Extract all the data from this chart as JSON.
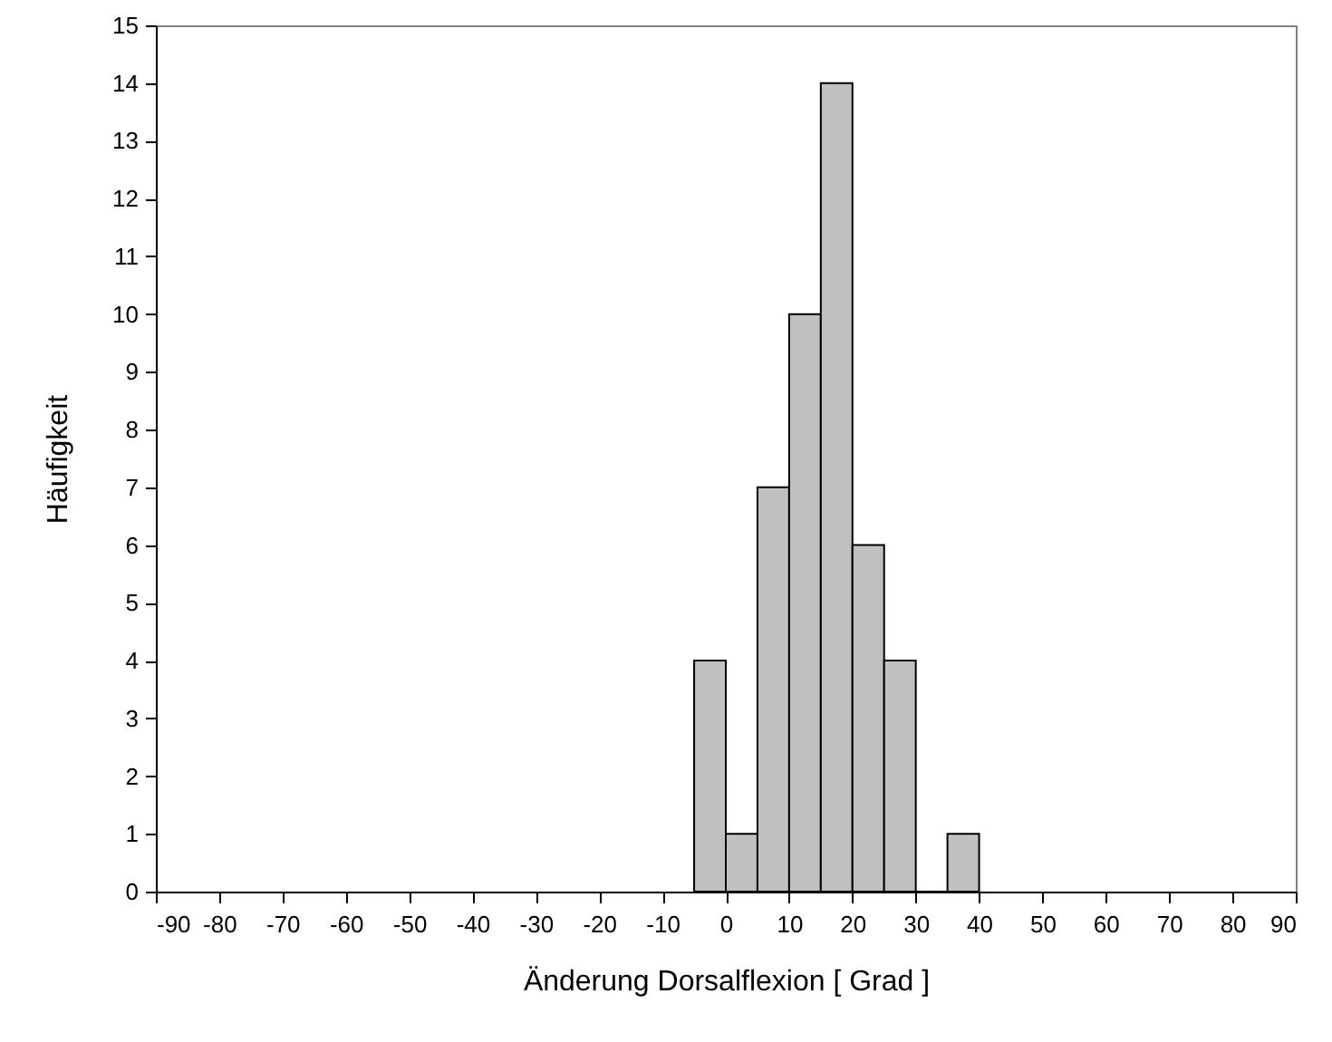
{
  "chart_data": {
    "type": "histogram",
    "xlabel": "Änderung Dorsalflexion [ Grad ]",
    "ylabel": "Häufigkeit",
    "bins": [
      -5,
      0,
      5,
      10,
      15,
      20,
      25,
      30,
      35,
      40
    ],
    "values": [
      4,
      1,
      7,
      10,
      14,
      6,
      4,
      0,
      1
    ],
    "color": "#c0c0c0",
    "xlim": [
      -90,
      90
    ],
    "xticks": [
      -90,
      -80,
      -70,
      -60,
      -50,
      -40,
      -30,
      -20,
      -10,
      0,
      10,
      20,
      30,
      40,
      50,
      60,
      70,
      80,
      90
    ],
    "ylim": [
      0,
      15
    ],
    "yticks": [
      0,
      1,
      2,
      3,
      4,
      5,
      6,
      7,
      8,
      9,
      10,
      11,
      12,
      13,
      14,
      15
    ],
    "grid": false
  }
}
